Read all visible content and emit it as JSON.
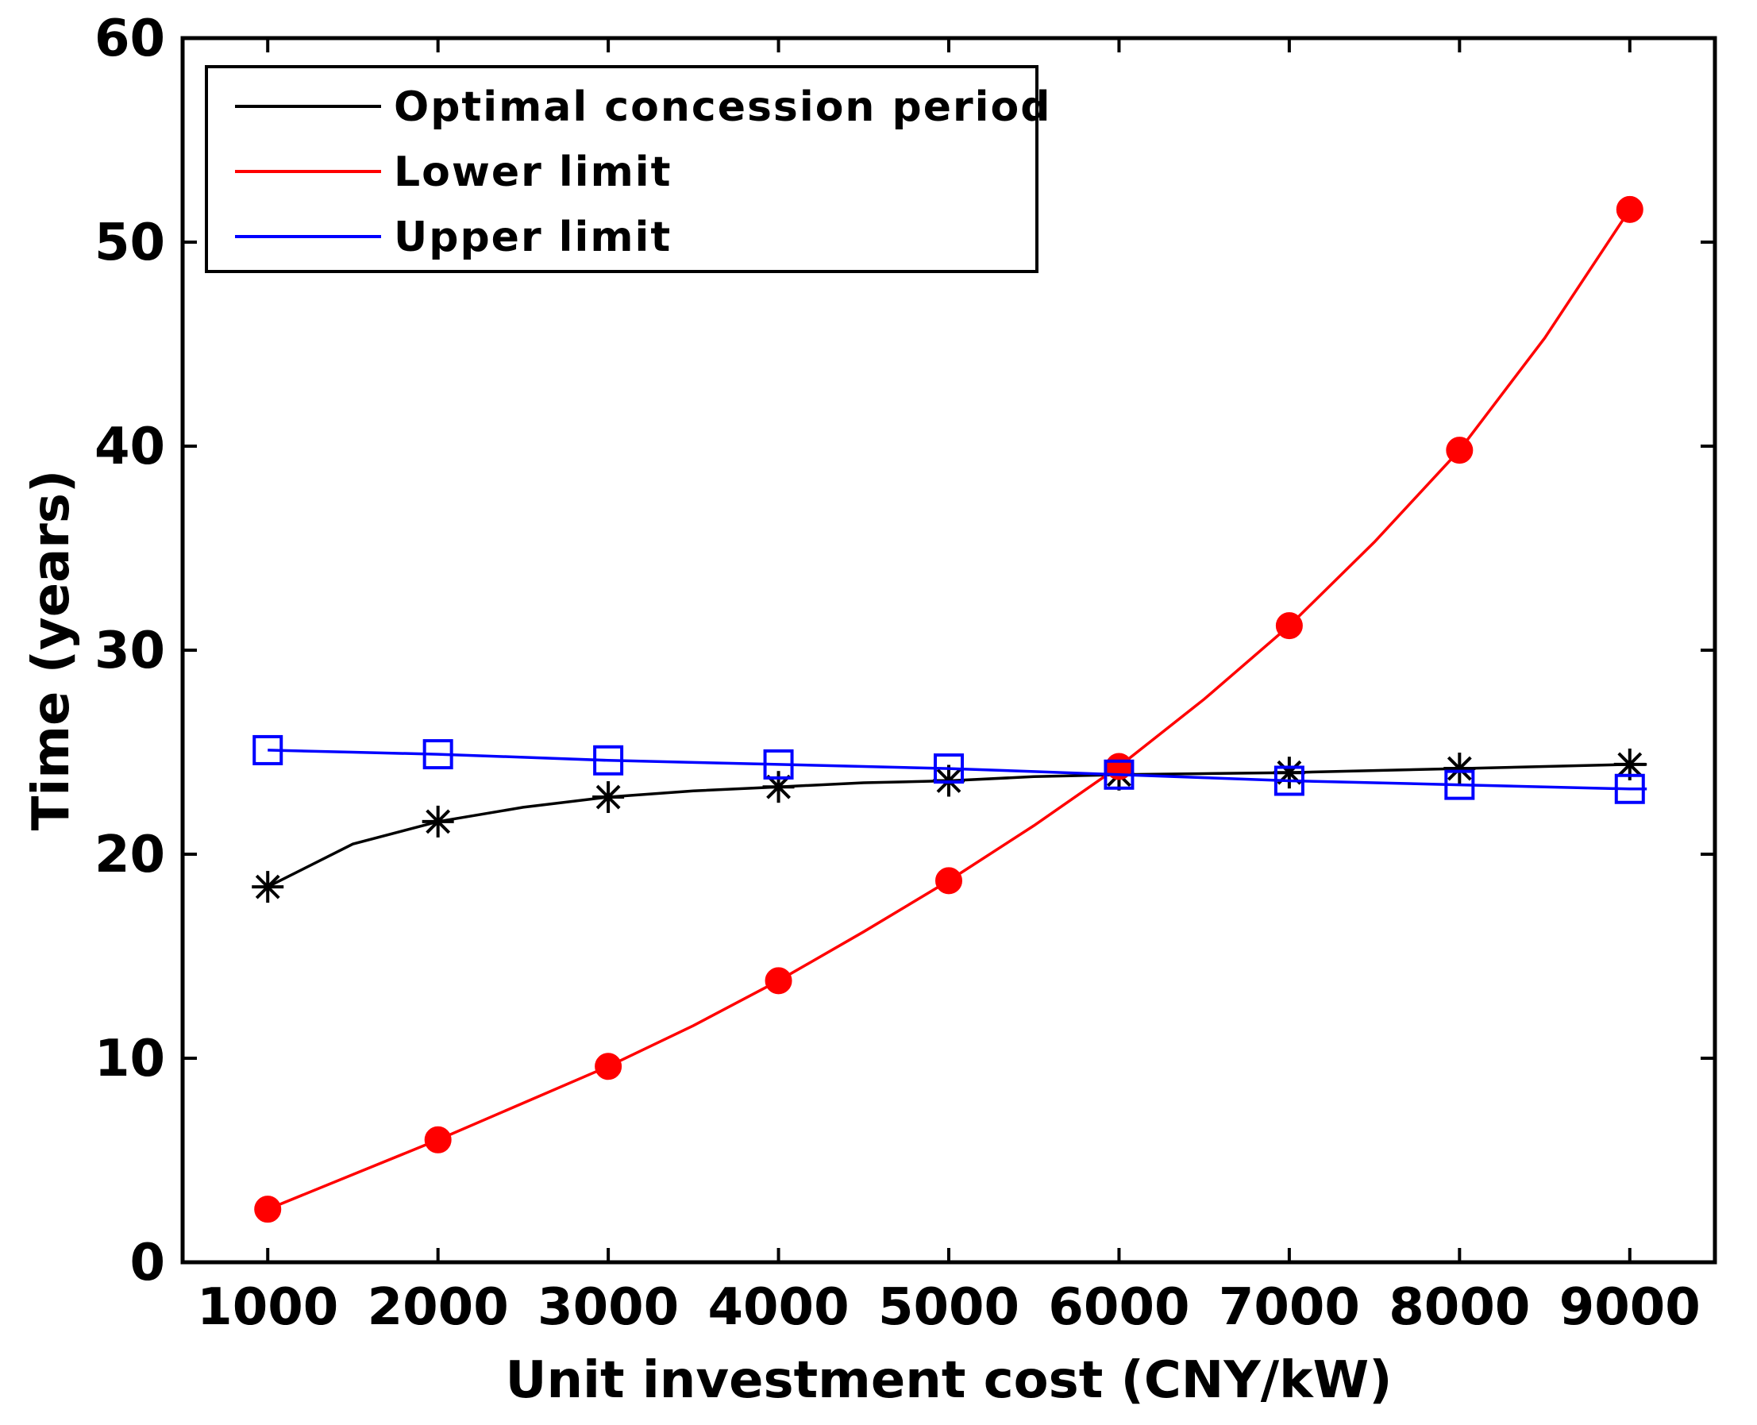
{
  "chart_data": {
    "type": "line",
    "title": "",
    "xlabel": "Unit investment cost (CNY/kW)",
    "ylabel": "Time (years)",
    "xlim": [
      500,
      9500
    ],
    "ylim": [
      0,
      60
    ],
    "x": [
      1000,
      2000,
      3000,
      4000,
      5000,
      6000,
      7000,
      8000,
      9000
    ],
    "x_ticks": [
      "1000",
      "2000",
      "3000",
      "4000",
      "5000",
      "6000",
      "7000",
      "8000",
      "9000"
    ],
    "y_ticks": [
      "0",
      "10",
      "20",
      "30",
      "40",
      "50",
      "60"
    ],
    "y_tick_values": [
      0,
      10,
      20,
      30,
      40,
      50,
      60
    ],
    "grid": false,
    "legend_position": "top-left",
    "series": [
      {
        "name": "Optimal concession period",
        "color": "#000000",
        "marker": "asterisk",
        "values": [
          18.4,
          21.6,
          22.8,
          23.3,
          23.6,
          23.9,
          24.0,
          24.2,
          24.4
        ],
        "curve_x": [
          1000,
          1500,
          2000,
          2500,
          3000,
          3500,
          4000,
          4500,
          5000,
          5500,
          6000,
          6500,
          7000,
          7500,
          8000,
          8500,
          9000,
          9100
        ],
        "curve_y": [
          18.4,
          20.5,
          21.6,
          22.3,
          22.8,
          23.1,
          23.3,
          23.5,
          23.6,
          23.8,
          23.9,
          23.95,
          24.0,
          24.1,
          24.2,
          24.3,
          24.4,
          24.4
        ]
      },
      {
        "name": "Lower limit",
        "color": "#ff0000",
        "marker": "filled-circle",
        "values": [
          2.6,
          6.0,
          9.6,
          13.8,
          18.7,
          24.3,
          31.2,
          39.8,
          51.6
        ],
        "curve_x": [
          1000,
          1500,
          2000,
          2500,
          3000,
          3500,
          4000,
          4500,
          5000,
          5500,
          6000,
          6500,
          7000,
          7500,
          8000,
          8500,
          9000
        ],
        "curve_y": [
          2.6,
          4.3,
          6.0,
          7.8,
          9.6,
          11.6,
          13.8,
          16.2,
          18.7,
          21.4,
          24.3,
          27.6,
          31.2,
          35.3,
          39.8,
          45.3,
          51.6
        ]
      },
      {
        "name": "Upper limit",
        "color": "#0000ff",
        "marker": "open-square",
        "values": [
          25.1,
          24.9,
          24.6,
          24.4,
          24.2,
          23.9,
          23.6,
          23.4,
          23.2
        ],
        "curve_x": [
          1000,
          1500,
          2000,
          2500,
          3000,
          3500,
          4000,
          4500,
          5000,
          5500,
          6000,
          6500,
          7000,
          7500,
          8000,
          8500,
          9000,
          9100
        ],
        "curve_y": [
          25.1,
          25.0,
          24.9,
          24.75,
          24.6,
          24.5,
          24.4,
          24.3,
          24.2,
          24.05,
          23.9,
          23.75,
          23.6,
          23.5,
          23.4,
          23.3,
          23.2,
          23.2
        ]
      }
    ]
  }
}
